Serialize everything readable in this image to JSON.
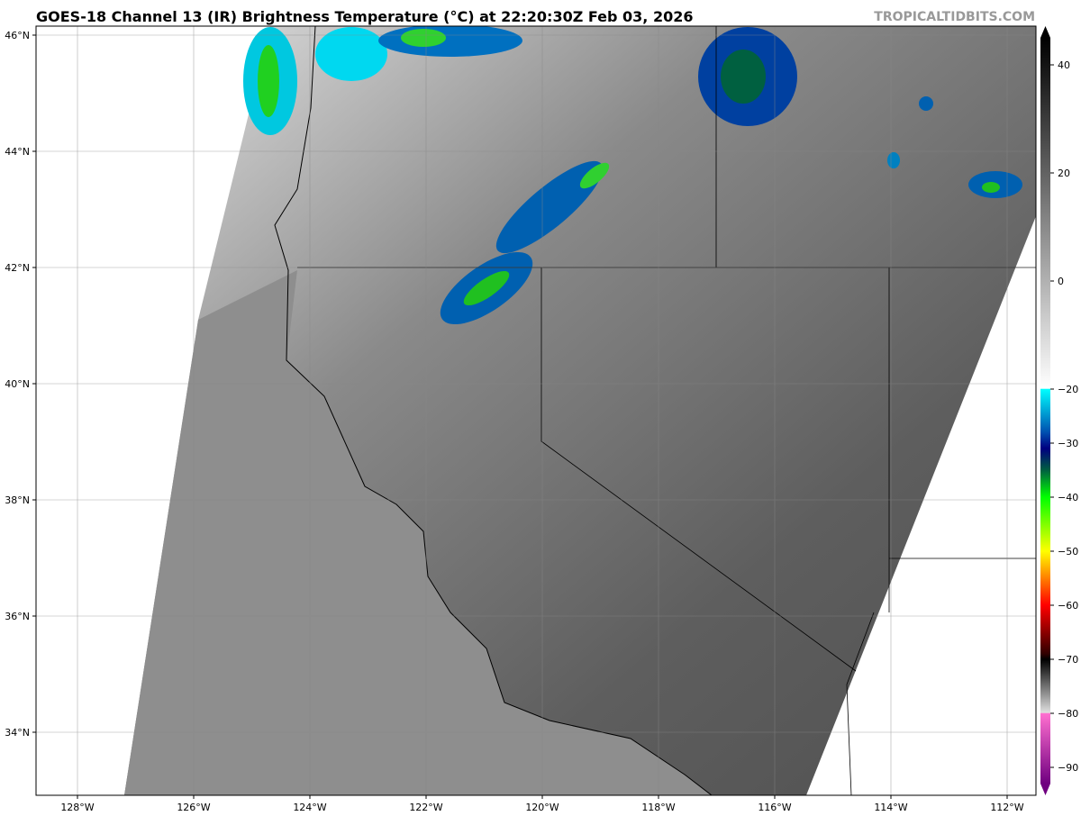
{
  "title": "GOES-18 Channel 13 (IR) Brightness Temperature (°C) at 22:20:30Z Feb 03, 2026",
  "watermark": "TROPICALTIDBITS.COM",
  "map": {
    "lon_labels": [
      "128°W",
      "126°W",
      "124°W",
      "122°W",
      "120°W",
      "118°W",
      "116°W",
      "114°W",
      "112°W"
    ],
    "lon_values": [
      128,
      126,
      124,
      122,
      120,
      118,
      116,
      114,
      112
    ],
    "lat_labels": [
      "46°N",
      "44°N",
      "42°N",
      "40°N",
      "38°N",
      "36°N",
      "34°N"
    ],
    "lat_values": [
      46,
      44,
      42,
      40,
      38,
      36,
      34
    ],
    "extent": {
      "lon_min": -128.7,
      "lon_max": -111.5,
      "lat_min": 32.9,
      "lat_max": 46.15
    }
  },
  "colorbar": {
    "ticks": [
      "40",
      "20",
      "0",
      "−20",
      "−30",
      "−40",
      "−50",
      "−60",
      "−70",
      "−80",
      "−90"
    ],
    "tick_values": [
      40,
      20,
      0,
      -20,
      -30,
      -40,
      -50,
      -60,
      -70,
      -80,
      -90
    ],
    "range": [
      -93,
      45
    ],
    "stops": [
      {
        "v": 45,
        "c": "#000000"
      },
      {
        "v": -19.9,
        "c": "#ffffff"
      },
      {
        "v": -20,
        "c": "#00ffff"
      },
      {
        "v": -28,
        "c": "#0050b0"
      },
      {
        "v": -31,
        "c": "#000080"
      },
      {
        "v": -35,
        "c": "#006040"
      },
      {
        "v": -40,
        "c": "#00ff00"
      },
      {
        "v": -50,
        "c": "#ffff00"
      },
      {
        "v": -60,
        "c": "#ff0000"
      },
      {
        "v": -69,
        "c": "#300000"
      },
      {
        "v": -70,
        "c": "#000000"
      },
      {
        "v": -79.9,
        "c": "#e0e0e0"
      },
      {
        "v": -80,
        "c": "#ff70d0"
      },
      {
        "v": -93,
        "c": "#700080"
      }
    ]
  }
}
